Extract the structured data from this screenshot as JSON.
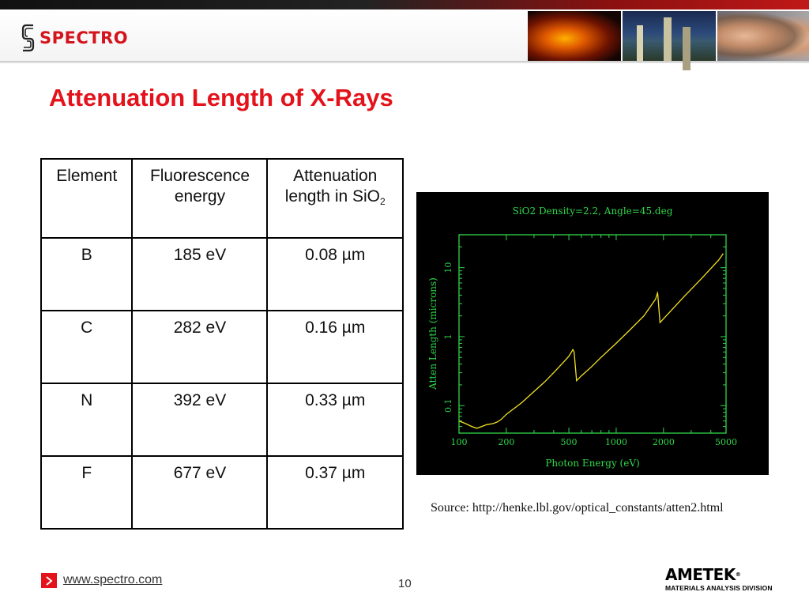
{
  "header": {
    "brand": "SPECTRO",
    "brand_color": "#d4141c",
    "photos": [
      "industrial-fire-photo",
      "refinery-night-photo",
      "people-faces-photo"
    ]
  },
  "slide": {
    "title": "Attenuation Length of X-Rays",
    "title_color": "#e3121b",
    "number": "10"
  },
  "table": {
    "headers": [
      "Element",
      "Fluorescence energy",
      "Attenuation length in SiO",
      "2"
    ],
    "header_col3_main": "Attenuation length in SiO",
    "header_col3_sub": "2",
    "rows": [
      {
        "element": "B",
        "energy": "185 eV",
        "length": "0.08 µm"
      },
      {
        "element": "C",
        "energy": "282 eV",
        "length": "0.16 µm"
      },
      {
        "element": "N",
        "energy": "392 eV",
        "length": "0.33 µm"
      },
      {
        "element": "F",
        "energy": "677 eV",
        "length": "0.37 µm"
      }
    ]
  },
  "chart_data": {
    "type": "line",
    "title": "SiO2 Density=2.2, Angle=45.deg",
    "xlabel": "Photon Energy (eV)",
    "ylabel": "Atten Length (microns)",
    "x_scale": "log",
    "y_scale": "log",
    "xlim": [
      100,
      5000
    ],
    "ylim": [
      0.04,
      30
    ],
    "x_ticks": [
      100,
      200,
      500,
      1000,
      2000,
      5000
    ],
    "x_tick_labels": [
      "100",
      "200",
      "500",
      "1000",
      "2000",
      "5000"
    ],
    "y_ticks": [
      0.1,
      1,
      10
    ],
    "y_tick_labels": [
      "0.1",
      "1",
      "10"
    ],
    "background": "#000000",
    "axis_color": "#2fd84a",
    "line_color": "#f2e020",
    "series": [
      {
        "x": [
          100,
          110,
          120,
          130,
          150,
          165,
          175,
          185,
          200,
          250,
          300,
          350,
          400,
          450,
          500,
          530,
          540,
          560,
          600,
          700,
          800,
          1000,
          1200,
          1500,
          1780,
          1830,
          1840,
          1900,
          2200,
          2700,
          3500,
          4500,
          4800
        ],
        "y": [
          0.06,
          0.055,
          0.05,
          0.047,
          0.053,
          0.055,
          0.058,
          0.063,
          0.075,
          0.11,
          0.16,
          0.22,
          0.3,
          0.4,
          0.52,
          0.65,
          0.6,
          0.23,
          0.27,
          0.37,
          0.5,
          0.8,
          1.2,
          2.0,
          3.5,
          4.3,
          4.1,
          1.6,
          2.3,
          3.8,
          7.0,
          13.0,
          16.0
        ]
      }
    ]
  },
  "source": "Source: http://henke.lbl.gov/optical_constants/atten2.html",
  "footer": {
    "url": "www.spectro.com",
    "company": "AMETEK",
    "division": "MATERIALS ANALYSIS DIVISION"
  }
}
